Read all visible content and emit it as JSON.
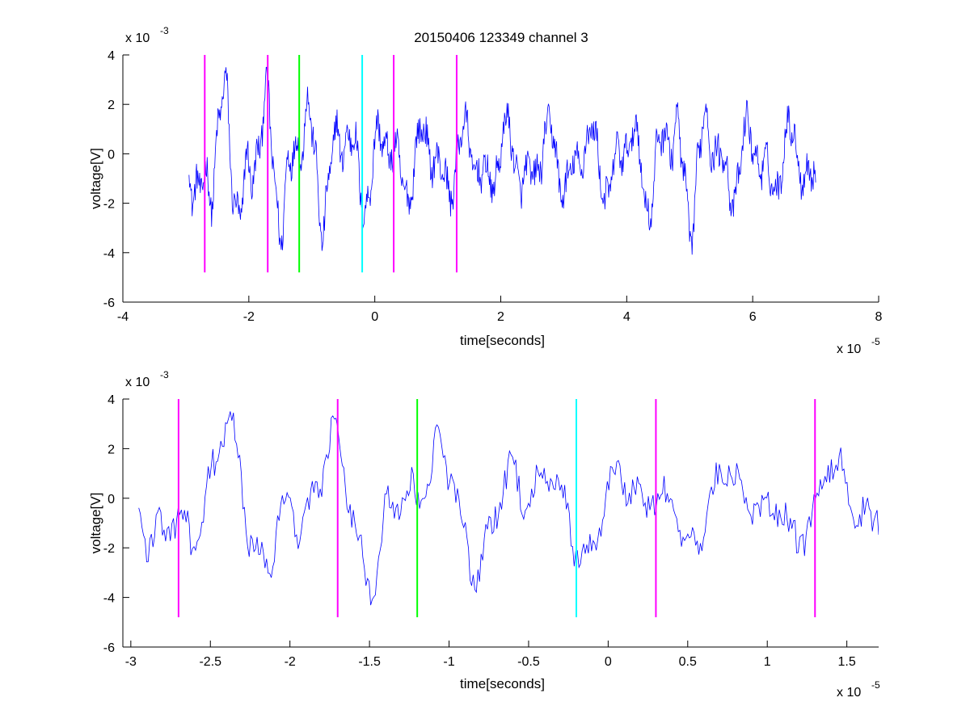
{
  "figure": {
    "title": "20150406 123349 channel 3",
    "background": "#ffffff",
    "signal_color": "#0000ff",
    "marker_colors": {
      "magenta": "#ff00ff",
      "green": "#00ff00",
      "cyan": "#00ffff"
    }
  },
  "chart_data": [
    {
      "type": "line",
      "title": "20150406 123349 channel 3",
      "xlabel": "time[seconds]",
      "ylabel": "voltage[V]",
      "x_multiplier": "x 10",
      "x_multiplier_exp": "-5",
      "y_multiplier": "x 10",
      "y_multiplier_exp": "-3",
      "xlim": [
        -4e-05,
        8e-05
      ],
      "ylim": [
        -0.006,
        0.004
      ],
      "xticks": [
        -4e-05,
        -2e-05,
        0,
        2e-05,
        4e-05,
        6e-05,
        8e-05
      ],
      "xtick_labels": [
        "-4",
        "-2",
        "0",
        "2",
        "4",
        "6",
        "8"
      ],
      "yticks": [
        -0.006,
        -0.004,
        -0.002,
        0,
        0.002,
        0.004
      ],
      "ytick_labels": [
        "-6",
        "-4",
        "-2",
        "0",
        "2",
        "4"
      ],
      "grid": false,
      "signal": {
        "x_start": -2.95e-05,
        "x_end": 7e-05,
        "num_points": 1000,
        "y_min_observed": -0.0044,
        "y_max_observed": 0.0035
      },
      "markers": [
        {
          "x": -2.7e-05,
          "color": "magenta",
          "y_top": 0.004,
          "y_bottom": -0.0048
        },
        {
          "x": -1.7e-05,
          "color": "magenta",
          "y_top": 0.004,
          "y_bottom": -0.0048
        },
        {
          "x": -1.2e-05,
          "color": "green",
          "y_top": 0.004,
          "y_bottom": -0.0048
        },
        {
          "x": -2e-06,
          "color": "cyan",
          "y_top": 0.004,
          "y_bottom": -0.0048
        },
        {
          "x": 3e-06,
          "color": "magenta",
          "y_top": 0.004,
          "y_bottom": -0.0048
        },
        {
          "x": 1.3e-05,
          "color": "magenta",
          "y_top": 0.004,
          "y_bottom": -0.0048
        }
      ]
    },
    {
      "type": "line",
      "title": "",
      "xlabel": "time[seconds]",
      "ylabel": "voltage[V]",
      "x_multiplier": "x 10",
      "x_multiplier_exp": "-5",
      "y_multiplier": "x 10",
      "y_multiplier_exp": "-3",
      "xlim": [
        -3.05e-05,
        1.7e-05
      ],
      "ylim": [
        -0.006,
        0.004
      ],
      "xticks": [
        -3e-05,
        -2.5e-05,
        -2e-05,
        -1.5e-05,
        -1e-05,
        -5e-06,
        0,
        5e-06,
        1e-05,
        1.5e-05
      ],
      "xtick_labels": [
        "-3",
        "-2.5",
        "-2",
        "-1.5",
        "-1",
        "-0.5",
        "0",
        "0.5",
        "1",
        "1.5"
      ],
      "yticks": [
        -0.006,
        -0.004,
        -0.002,
        0,
        0.002,
        0.004
      ],
      "ytick_labels": [
        "-6",
        "-4",
        "-2",
        "0",
        "2",
        "4"
      ],
      "grid": false,
      "signal": {
        "x_start": -2.95e-05,
        "x_end": 1.7e-05,
        "num_points": 470,
        "y_min_observed": -0.0044,
        "y_max_observed": 0.0031
      },
      "markers": [
        {
          "x": -2.7e-05,
          "color": "magenta",
          "y_top": 0.004,
          "y_bottom": -0.0048
        },
        {
          "x": -1.7e-05,
          "color": "magenta",
          "y_top": 0.004,
          "y_bottom": -0.0048
        },
        {
          "x": -1.2e-05,
          "color": "green",
          "y_top": 0.004,
          "y_bottom": -0.0048
        },
        {
          "x": -2e-06,
          "color": "cyan",
          "y_top": 0.004,
          "y_bottom": -0.0048
        },
        {
          "x": 3e-06,
          "color": "magenta",
          "y_top": 0.004,
          "y_bottom": -0.0048
        },
        {
          "x": 1.3e-05,
          "color": "magenta",
          "y_top": 0.004,
          "y_bottom": -0.0048
        }
      ]
    }
  ]
}
